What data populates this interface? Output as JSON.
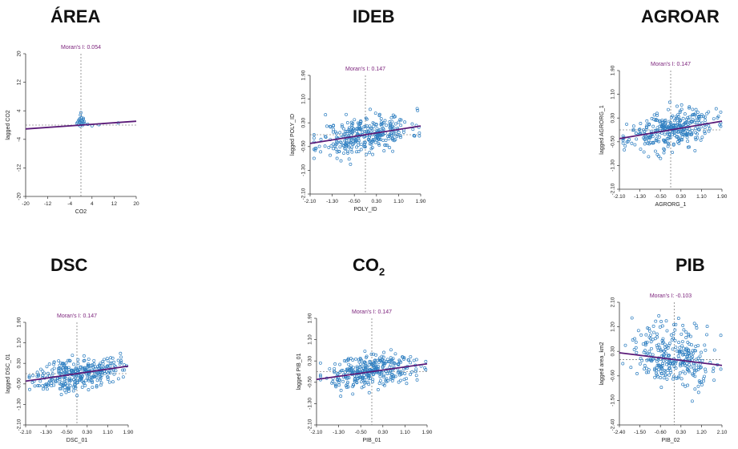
{
  "panels": [
    {
      "title": "ÁREA"
    },
    {
      "title": "IDEB"
    },
    {
      "title": "AGROAR"
    },
    {
      "title": "DSC"
    },
    {
      "title_main": "CO",
      "title_sub": "2"
    },
    {
      "title": "PIB"
    }
  ],
  "colors": {
    "points": "#2f7fc1",
    "regression": "#5a1a78",
    "guides": "#555555",
    "moran_text": "#7a1f7a"
  },
  "chart_data": [
    {
      "type": "scatter",
      "subtitle": "Moran's I: 0.054",
      "xlabel": "CO2",
      "ylabel": "lagged CO2",
      "xlim": [
        -20,
        20
      ],
      "ylim": [
        -20,
        20
      ],
      "xticks": [
        "-20",
        "-12",
        "-4",
        "4",
        "12",
        "20"
      ],
      "yticks": [
        "-20",
        "-12",
        "-4",
        "4",
        "12",
        "20"
      ],
      "slope": 0.054,
      "points": [
        [
          -1.2,
          0.8
        ],
        [
          -0.5,
          1.5
        ],
        [
          0.2,
          0.4
        ],
        [
          0.6,
          1.1
        ],
        [
          -0.9,
          0.1
        ],
        [
          0.3,
          2.0
        ],
        [
          1.0,
          0.6
        ],
        [
          -0.3,
          -0.2
        ],
        [
          0.8,
          1.6
        ],
        [
          -0.6,
          0.9
        ],
        [
          0.1,
          1.2
        ],
        [
          1.4,
          0.3
        ],
        [
          -1.5,
          0.5
        ],
        [
          0.5,
          -0.1
        ],
        [
          -0.1,
          0.7
        ],
        [
          0.9,
          1.9
        ],
        [
          -0.8,
          1.4
        ],
        [
          0.4,
          0.2
        ],
        [
          1.2,
          1.0
        ],
        [
          -0.4,
          1.8
        ],
        [
          0.0,
          3.5
        ],
        [
          -0.2,
          2.8
        ],
        [
          2.5,
          0.2
        ],
        [
          4.0,
          -0.2
        ],
        [
          13.5,
          0.6
        ],
        [
          6.5,
          0.1
        ]
      ]
    },
    {
      "type": "scatter",
      "subtitle": "Moran's I: 0.147",
      "xlabel": "POLY_ID",
      "ylabel": "lagged POLY_ID",
      "xlim": [
        -2.1,
        2.1
      ],
      "ylim": [
        -2.1,
        2.1
      ],
      "xticks": [
        "-2.10",
        "-1.30",
        "-0.50",
        "0.30",
        "1.10",
        "1.90"
      ],
      "yticks": [
        "-2.10",
        "-1.30",
        "-0.50",
        "0.30",
        "1.10",
        "1.90"
      ],
      "slope": 0.147,
      "seed": 11,
      "n": 330,
      "spread": 0.32
    },
    {
      "type": "scatter",
      "subtitle": "Moran's I: 0.147",
      "xlabel": "AGRORG_1",
      "ylabel": "lagged AGRORG_1",
      "xlim": [
        -2.1,
        2.1
      ],
      "ylim": [
        -2.1,
        2.1
      ],
      "xticks": [
        "-2.10",
        "-1.30",
        "-0.50",
        "0.30",
        "1.10",
        "1.90"
      ],
      "yticks": [
        "-2.10",
        "-1.30",
        "-0.50",
        "0.30",
        "1.10",
        "1.90"
      ],
      "slope": 0.147,
      "seed": 23,
      "n": 330,
      "spread": 0.32
    },
    {
      "type": "scatter",
      "subtitle": "Moran's I: 0.147",
      "xlabel": "DSC_01",
      "ylabel": "lagged DSC_01",
      "xlim": [
        -2.1,
        2.1
      ],
      "ylim": [
        -2.1,
        2.1
      ],
      "xticks": [
        "-2.10",
        "-1.30",
        "-0.50",
        "0.30",
        "1.10",
        "1.90"
      ],
      "yticks": [
        "-2.10",
        "-1.30",
        "-0.50",
        "0.30",
        "1.10",
        "1.90"
      ],
      "slope": 0.147,
      "seed": 37,
      "n": 330,
      "spread": 0.32
    },
    {
      "type": "scatter",
      "subtitle": "Moran's I: 0.147",
      "xlabel": "PIB_01",
      "ylabel": "lagged PIB_01",
      "xlim": [
        -2.1,
        2.1
      ],
      "ylim": [
        -2.1,
        2.1
      ],
      "xticks": [
        "-2.10",
        "-1.30",
        "-0.50",
        "0.30",
        "1.10",
        "1.90"
      ],
      "yticks": [
        "-2.10",
        "-1.30",
        "-0.50",
        "0.30",
        "1.10",
        "1.90"
      ],
      "slope": 0.147,
      "seed": 51,
      "n": 330,
      "spread": 0.32
    },
    {
      "type": "scatter",
      "subtitle": "Moran's I: -0.103",
      "xlabel": "PIB_02",
      "ylabel": "lagged area_km2",
      "xlim": [
        -2.4,
        2.1
      ],
      "ylim": [
        -2.4,
        2.1
      ],
      "xticks": [
        "-2.40",
        "-1.50",
        "-0.60",
        "0.30",
        "1.20",
        "2.10"
      ],
      "yticks": [
        "-2.40",
        "-1.50",
        "-0.60",
        "0.30",
        "1.20",
        "2.10"
      ],
      "slope": -0.103,
      "seed": 73,
      "n": 300,
      "spread": 0.45,
      "skew": true
    }
  ]
}
